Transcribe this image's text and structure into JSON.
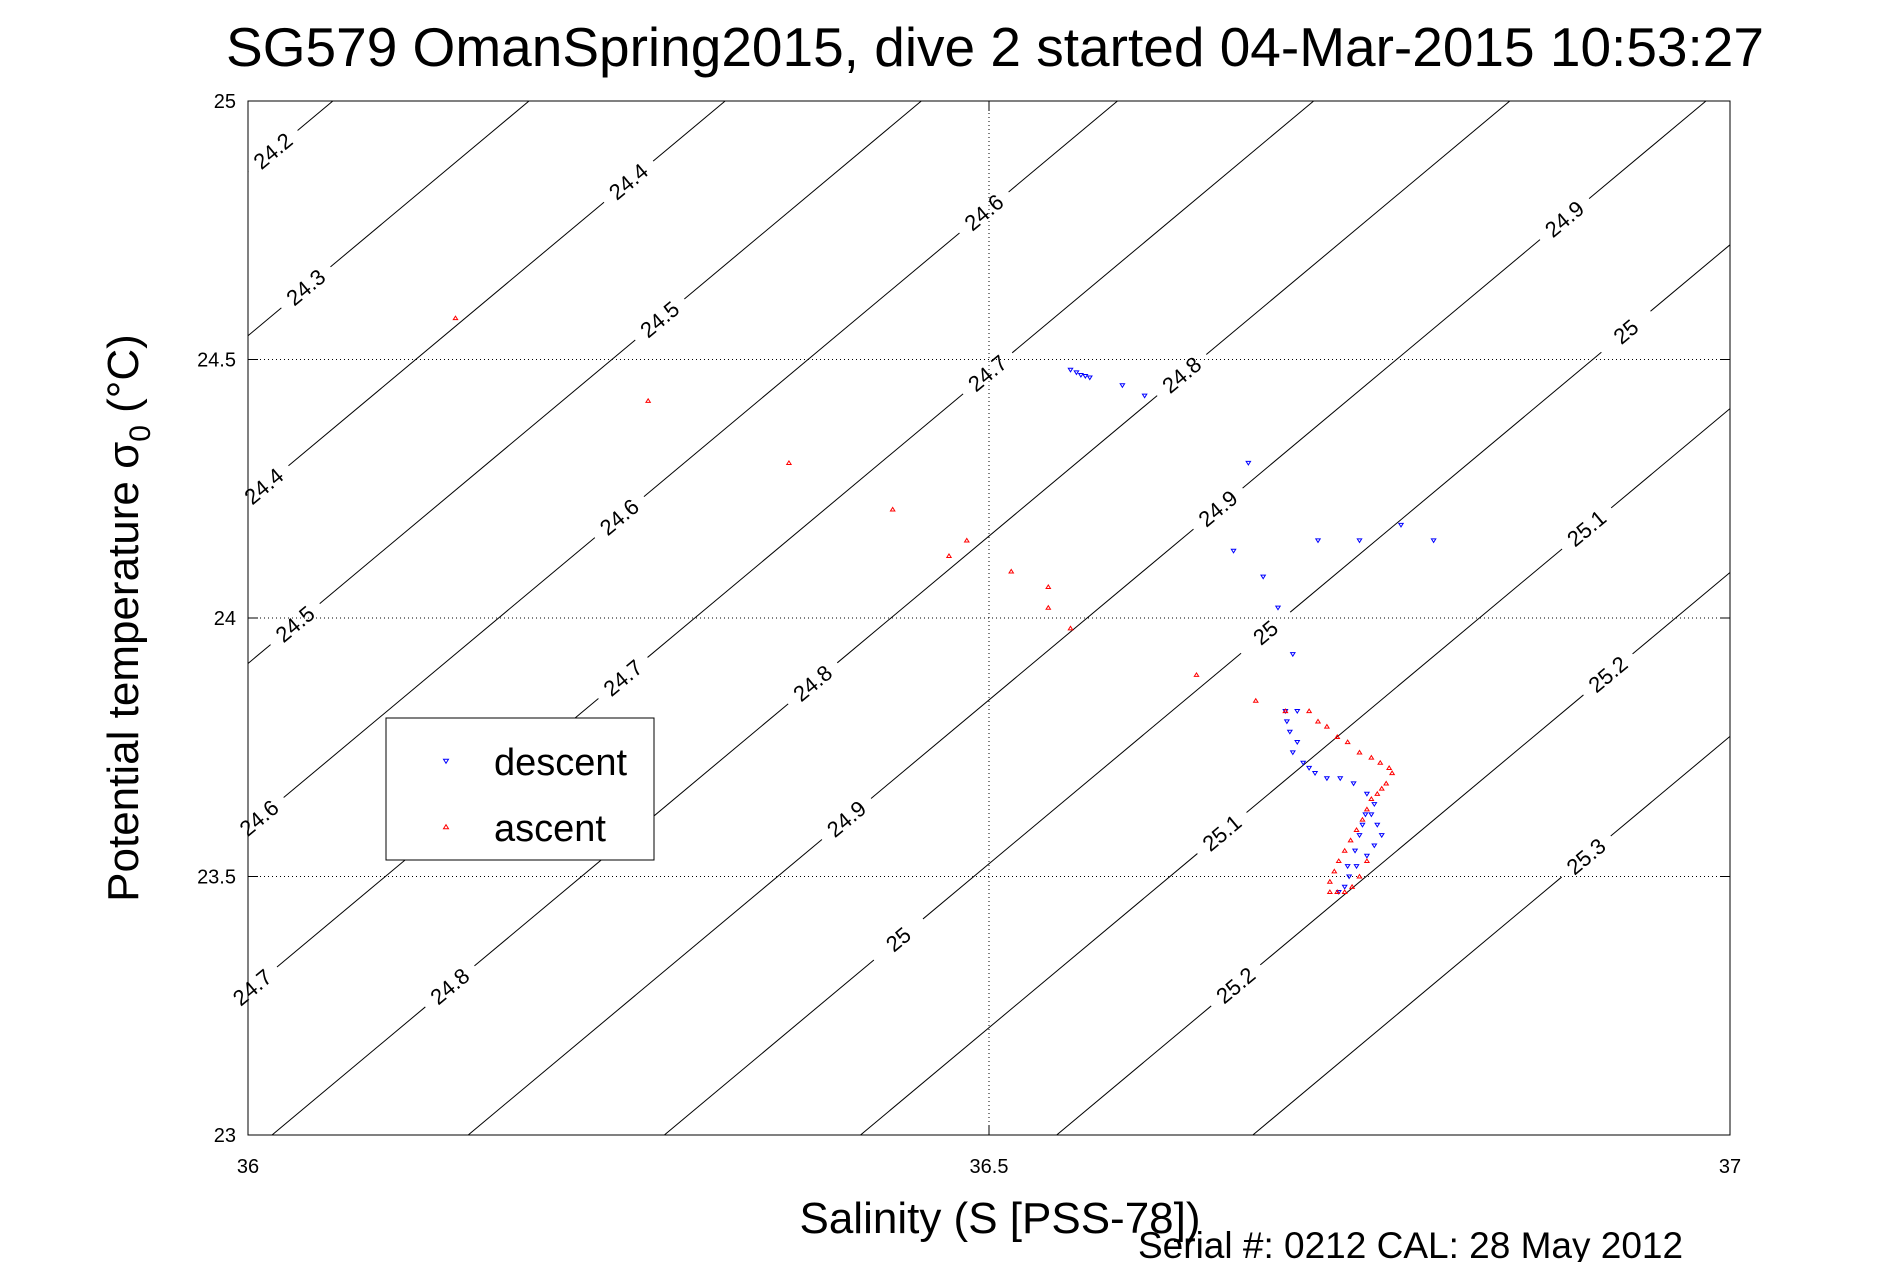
{
  "chart_data": {
    "type": "scatter",
    "title": "SG579 OmanSpring2015, dive 2 started 04-Mar-2015 10:53:27",
    "xlabel": "Salinity (S [PSS-78])",
    "ylabel_main": "Potential temperature σ",
    "ylabel_sub": "0",
    "ylabel_unit": " (°C)",
    "xlim": [
      36,
      37
    ],
    "ylim": [
      23,
      25
    ],
    "xticks": [
      "36",
      "36.5",
      "37"
    ],
    "yticks": [
      "23",
      "23.5",
      "24",
      "24.5",
      "25"
    ],
    "grid": true,
    "legend_position": "center-left",
    "footer": "Serial #: 0212  CAL: 28 May 2012",
    "contours": [
      {
        "level": 24.2,
        "labels": [
          {
            "label": "24.2",
            "s": 36.047,
            "t": 24.8
          }
        ]
      },
      {
        "level": 24.3,
        "labels": [
          {
            "label": "24.3",
            "s": 36.071,
            "t": 24.53
          }
        ]
      },
      {
        "level": 24.4,
        "labels": [
          {
            "label": "24.4",
            "s": 36.29,
            "t": 24.73
          },
          {
            "label": "24.4",
            "s": 36.05,
            "t": 24.12
          }
        ]
      },
      {
        "level": 24.5,
        "labels": [
          {
            "label": "24.5",
            "s": 36.315,
            "t": 24.45
          },
          {
            "label": "24.5",
            "s": 36.075,
            "t": 23.84
          }
        ]
      },
      {
        "level": 24.6,
        "labels": [
          {
            "label": "24.6",
            "s": 36.53,
            "t": 24.67
          },
          {
            "label": "24.6",
            "s": 36.29,
            "t": 24.06
          },
          {
            "label": "24.6",
            "s": 36.055,
            "t": 23.45
          }
        ]
      },
      {
        "level": 24.7,
        "labels": [
          {
            "label": "24.7",
            "s": 36.535,
            "t": 24.35
          },
          {
            "label": "24.7",
            "s": 36.295,
            "t": 23.74
          },
          {
            "label": "24.7",
            "s": 36.057,
            "t": 23.1
          }
        ]
      },
      {
        "level": 24.8,
        "labels": [
          {
            "label": "24.8",
            "s": 36.665,
            "t": 24.35
          },
          {
            "label": "24.8",
            "s": 36.42,
            "t": 23.74
          },
          {
            "label": "24.8",
            "s": 36.185,
            "t": 23.12
          }
        ]
      },
      {
        "level": 24.9,
        "labels": [
          {
            "label": "24.9",
            "s": 36.915,
            "t": 24.68
          },
          {
            "label": "24.9",
            "s": 36.69,
            "t": 24.09
          },
          {
            "label": "24.9",
            "s": 36.445,
            "t": 23.47
          }
        ]
      },
      {
        "level": 25,
        "labels": [
          {
            "label": "25",
            "s": 36.96,
            "t": 24.45
          },
          {
            "label": "25",
            "s": 36.725,
            "t": 23.84
          },
          {
            "label": "25",
            "s": 36.485,
            "t": 23.22
          }
        ]
      },
      {
        "level": 25.1,
        "labels": [
          {
            "label": "25.1",
            "s": 36.945,
            "t": 24.03
          },
          {
            "label": "25.1",
            "s": 36.705,
            "t": 23.42
          }
        ]
      },
      {
        "level": 25.2,
        "labels": [
          {
            "label": "25.2",
            "s": 36.95,
            "t": 23.78
          },
          {
            "label": "25.2",
            "s": 36.71,
            "t": 23.14
          }
        ]
      },
      {
        "level": 25.3,
        "labels": [
          {
            "label": "25.3",
            "s": 36.955,
            "t": 23.36
          }
        ]
      }
    ],
    "series": [
      {
        "name": "descent",
        "marker": "down-triangle",
        "color": "#0000ff",
        "x": [
          36.555,
          36.559,
          36.562,
          36.565,
          36.568,
          36.59,
          36.605,
          36.675,
          36.665,
          36.685,
          36.695,
          36.705,
          36.708,
          36.7,
          36.722,
          36.75,
          36.778,
          36.8,
          36.701,
          36.703,
          36.708,
          36.705,
          36.712,
          36.716,
          36.72,
          36.728,
          36.737,
          36.746,
          36.755,
          36.76,
          36.758,
          36.762,
          36.765,
          36.76,
          36.755,
          36.748,
          36.743,
          36.74,
          36.736,
          36.742,
          36.747,
          36.75,
          36.752,
          36.754
        ],
        "y": [
          24.48,
          24.475,
          24.47,
          24.468,
          24.465,
          24.45,
          24.43,
          24.3,
          24.13,
          24.08,
          24.02,
          23.93,
          23.82,
          23.82,
          24.15,
          24.15,
          24.18,
          24.15,
          23.8,
          23.78,
          23.76,
          23.74,
          23.72,
          23.71,
          23.7,
          23.69,
          23.69,
          23.68,
          23.66,
          23.64,
          23.62,
          23.6,
          23.58,
          23.56,
          23.54,
          23.52,
          23.5,
          23.48,
          23.47,
          23.52,
          23.55,
          23.58,
          23.6,
          23.62
        ]
      },
      {
        "name": "ascent",
        "marker": "up-triangle",
        "color": "#ff0000",
        "x": [
          36.14,
          36.27,
          36.365,
          36.435,
          36.473,
          36.485,
          36.515,
          36.54,
          36.54,
          36.555,
          36.64,
          36.68,
          36.7,
          36.716,
          36.722,
          36.728,
          36.735,
          36.742,
          36.75,
          36.758,
          36.764,
          36.77,
          36.772,
          36.768,
          36.765,
          36.762,
          36.758,
          36.755,
          36.752,
          36.748,
          36.744,
          36.74,
          36.736,
          36.733,
          36.73,
          36.73,
          36.735,
          36.74,
          36.745,
          36.75,
          36.755
        ],
        "y": [
          24.58,
          24.42,
          24.3,
          24.21,
          24.12,
          24.15,
          24.09,
          24.06,
          24.02,
          23.98,
          23.89,
          23.84,
          23.82,
          23.82,
          23.8,
          23.79,
          23.77,
          23.76,
          23.74,
          23.73,
          23.72,
          23.71,
          23.7,
          23.68,
          23.67,
          23.66,
          23.65,
          23.63,
          23.61,
          23.59,
          23.57,
          23.55,
          23.53,
          23.51,
          23.49,
          23.47,
          23.47,
          23.47,
          23.48,
          23.5,
          23.53
        ]
      }
    ]
  }
}
